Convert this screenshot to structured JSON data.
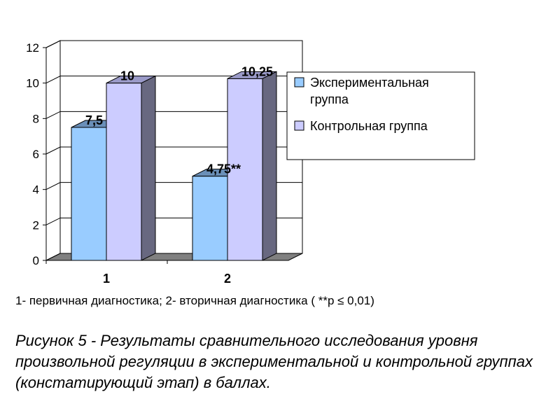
{
  "chart_data": {
    "type": "bar",
    "categories": [
      "1",
      "2"
    ],
    "series": [
      {
        "name": "Экспериментальная группа",
        "values": [
          7.5,
          4.75
        ],
        "labels": [
          "7,5",
          "4,75**"
        ],
        "color": "#99ccff"
      },
      {
        "name": "Контрольная группа",
        "values": [
          10,
          10.25
        ],
        "labels": [
          "10",
          "10,25"
        ],
        "color": "#ccccff"
      }
    ],
    "yticks": [
      "0",
      "2",
      "4",
      "6",
      "8",
      "10",
      "12"
    ],
    "ylim": [
      0,
      12
    ],
    "legend": {
      "lines": [
        [
          "Экспериментальная",
          "группа"
        ],
        [
          "Контрольная группа"
        ]
      ],
      "position": "right"
    },
    "grid": true,
    "three_d": true
  },
  "note": "1- первичная диагностика; 2- вторичная диагностика ( **p ≤ 0,01)",
  "caption": "Рисунок 5 - Результаты сравнительного исследования уровня произвольной регуляции в экспериментальной и контрольной группах (констатирующий этап) в баллах."
}
